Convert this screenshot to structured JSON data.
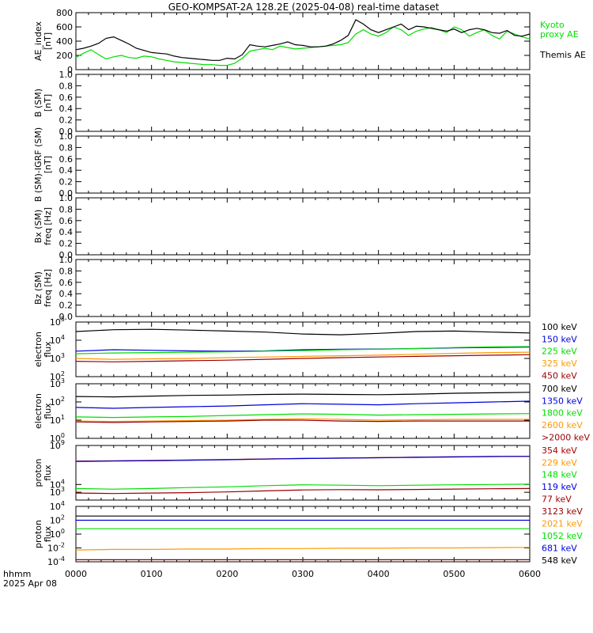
{
  "title": "GEO-KOMPSAT-2A 128.2E (2025-04-08) real-time dataset",
  "time_axis": {
    "ticks": [
      "0000",
      "0100",
      "0200",
      "0300",
      "0400",
      "0500",
      "0600"
    ],
    "label_line1": "hhmm",
    "label_line2": "2025 Apr 08"
  },
  "colors": {
    "black": "#000000",
    "green": "#00dd00",
    "blue": "#0000dd",
    "teal": "#008888",
    "orange": "#ff9900",
    "dark_red": "#990000",
    "crimson": "#aa0000"
  },
  "chart_data": [
    {
      "type": "line",
      "panel": "ae",
      "ylabel": [
        "AE_index",
        "[nT]"
      ],
      "yticks": [
        "0",
        "200",
        "400",
        "600",
        "800"
      ],
      "ylim": [
        0,
        800
      ],
      "x_hours": [
        0,
        0.1,
        0.2,
        0.3,
        0.4,
        0.5,
        0.6,
        0.7,
        0.8,
        0.9,
        1.0,
        1.1,
        1.2,
        1.3,
        1.4,
        1.5,
        1.6,
        1.7,
        1.8,
        1.9,
        2.0,
        2.1,
        2.2,
        2.3,
        2.4,
        2.5,
        2.6,
        2.7,
        2.8,
        2.9,
        3.0,
        3.1,
        3.2,
        3.3,
        3.4,
        3.5,
        3.6,
        3.7,
        3.8,
        3.9,
        4.0,
        4.1,
        4.2,
        4.3,
        4.4,
        4.5,
        4.6,
        4.7,
        4.8,
        4.9,
        5.0,
        5.1,
        5.2,
        5.3,
        5.4,
        5.5,
        5.6,
        5.7,
        5.8,
        5.9,
        6.0
      ],
      "series": [
        {
          "name": "Kyoto proxy AE",
          "color": "#00dd00",
          "values": [
            170,
            230,
            280,
            210,
            150,
            180,
            200,
            170,
            160,
            190,
            180,
            150,
            130,
            110,
            100,
            90,
            80,
            70,
            70,
            60,
            60,
            90,
            160,
            260,
            280,
            300,
            280,
            330,
            310,
            290,
            300,
            310,
            320,
            330,
            340,
            350,
            380,
            500,
            560,
            500,
            470,
            520,
            600,
            560,
            480,
            540,
            570,
            590,
            560,
            520,
            600,
            560,
            470,
            520,
            560,
            480,
            430,
            540,
            500,
            460,
            430
          ]
        },
        {
          "name": "Themis AE",
          "color": "#000000",
          "values": [
            280,
            300,
            330,
            370,
            440,
            460,
            410,
            360,
            300,
            270,
            240,
            230,
            220,
            190,
            170,
            160,
            150,
            140,
            130,
            130,
            160,
            150,
            210,
            350,
            330,
            320,
            340,
            360,
            390,
            350,
            340,
            320,
            320,
            330,
            360,
            410,
            480,
            700,
            640,
            560,
            520,
            560,
            600,
            640,
            560,
            610,
            600,
            580,
            560,
            540,
            570,
            520,
            560,
            580,
            560,
            520,
            510,
            550,
            480,
            470,
            500
          ]
        }
      ],
      "legend": [
        {
          "text": "Kyoto",
          "color": "#00dd00"
        },
        {
          "text": "proxy AE",
          "color": "#00dd00"
        },
        {
          "text": "Themis AE",
          "color": "#000000"
        }
      ]
    },
    {
      "type": "line",
      "panel": "b_sm",
      "ylabel": [
        "B (SM)",
        "[nT]"
      ],
      "yticks": [
        "0.0",
        "0.2",
        "0.4",
        "0.6",
        "0.8",
        "1.0"
      ],
      "ylim": [
        0,
        1
      ],
      "series": []
    },
    {
      "type": "line",
      "panel": "b_diff",
      "ylabel": [
        "B (SM)-IGRF (SM)",
        "[nT]"
      ],
      "yticks": [
        "0.0",
        "0.2",
        "0.4",
        "0.6",
        "0.8",
        "1.0"
      ],
      "ylim": [
        0,
        1
      ],
      "series": []
    },
    {
      "type": "line",
      "panel": "bx_freq",
      "ylabel": [
        "Bx (SM)",
        "freq [Hz]"
      ],
      "yticks": [
        "0.0",
        "0.2",
        "0.4",
        "0.6",
        "0.8",
        "1.0"
      ],
      "ylim": [
        0,
        1
      ],
      "series": []
    },
    {
      "type": "line",
      "panel": "bz_freq",
      "ylabel": [
        "Bz (SM)",
        "freq [Hz]"
      ],
      "yticks": [
        "0.0",
        "0.2",
        "0.4",
        "0.6",
        "0.8",
        "1.0"
      ],
      "ylim": [
        0,
        1
      ],
      "series": []
    },
    {
      "type": "line",
      "panel": "electron_low",
      "ylabel": [
        "electron",
        "flux"
      ],
      "yscale": "log",
      "yticks": [
        {
          "base": "10",
          "exp": "2"
        },
        {
          "base": "10",
          "exp": "3"
        },
        {
          "base": "10",
          "exp": "4"
        },
        {
          "base": "10",
          "exp": "5"
        }
      ],
      "ylim": [
        100,
        100000
      ],
      "x_hours": [
        0,
        0.5,
        1,
        1.5,
        2,
        2.5,
        3,
        3.5,
        4,
        4.5,
        5,
        5.5,
        6
      ],
      "series": [
        {
          "name": "100 keV",
          "color": "#000000",
          "values": [
            30000,
            38000,
            40000,
            36000,
            32000,
            28000,
            22000,
            20000,
            24000,
            30000,
            32000,
            28000,
            25000
          ]
        },
        {
          "name": "150 keV",
          "color": "#0000dd",
          "values": [
            2500,
            3000,
            2800,
            2600,
            2500,
            2600,
            3000,
            3200,
            3300,
            3500,
            3800,
            4000,
            4200
          ]
        },
        {
          "name": "225 keV",
          "color": "#00dd00",
          "values": [
            1800,
            2000,
            2100,
            2200,
            2300,
            2500,
            2700,
            3000,
            3200,
            3500,
            4000,
            4300,
            4500
          ]
        },
        {
          "name": "325 keV",
          "color": "#ff9900",
          "values": [
            1000,
            900,
            950,
            1000,
            1100,
            1200,
            1300,
            1400,
            1500,
            1700,
            1900,
            2100,
            2200
          ]
        },
        {
          "name": "450 keV",
          "color": "#990000",
          "values": [
            700,
            650,
            700,
            750,
            800,
            900,
            1000,
            1100,
            1200,
            1300,
            1400,
            1500,
            1600
          ]
        }
      ]
    },
    {
      "type": "line",
      "panel": "electron_high",
      "ylabel": [
        "electron",
        "flux"
      ],
      "yscale": "log",
      "yticks": [
        {
          "base": "10",
          "exp": "0"
        },
        {
          "base": "10",
          "exp": "1"
        },
        {
          "base": "10",
          "exp": "2"
        },
        {
          "base": "10",
          "exp": "3"
        }
      ],
      "ylim": [
        1,
        1000
      ],
      "x_hours": [
        0,
        0.5,
        1,
        1.5,
        2,
        2.5,
        3,
        3.5,
        4,
        4.5,
        5,
        5.5,
        6
      ],
      "series": [
        {
          "name": "700 keV",
          "color": "#000000",
          "values": [
            200,
            190,
            210,
            230,
            240,
            260,
            270,
            260,
            250,
            270,
            300,
            320,
            340
          ]
        },
        {
          "name": "1350 keV",
          "color": "#0000dd",
          "values": [
            50,
            45,
            50,
            55,
            60,
            70,
            80,
            75,
            70,
            80,
            90,
            100,
            110
          ]
        },
        {
          "name": "1800 keV",
          "color": "#00dd00",
          "values": [
            15,
            14,
            15,
            16,
            18,
            20,
            22,
            21,
            19,
            20,
            21,
            22,
            23
          ]
        },
        {
          "name": "2600 keV",
          "color": "#ff9900",
          "values": [
            9,
            8.5,
            9,
            9.5,
            10,
            11,
            12,
            11,
            10,
            10.5,
            11,
            11,
            11
          ]
        },
        {
          "name": ">2000 keV",
          "color": "#990000",
          "values": [
            8,
            7.5,
            8,
            8.5,
            9,
            10,
            10,
            9,
            8.5,
            9,
            9,
            9,
            9
          ]
        }
      ]
    },
    {
      "type": "line",
      "panel": "proton_low",
      "ylabel": [
        "proton",
        "flux"
      ],
      "yscale": "log",
      "yticks": [
        {
          "base": "10",
          "exp": "3"
        },
        {
          "base": "10",
          "exp": "4"
        },
        {
          "base": "10",
          "exp": "9"
        }
      ],
      "ylim": [
        100,
        1000000000
      ],
      "x_hours": [
        0,
        0.5,
        1,
        1.5,
        2,
        2.5,
        3,
        3.5,
        4,
        4.5,
        5,
        5.5,
        6
      ],
      "series": [
        {
          "name": "354 keV",
          "color": "#aa0000",
          "values": [
            10000000,
            11000000,
            12000000,
            14000000,
            16000000,
            19000000,
            22000000,
            25000000,
            28000000,
            32000000,
            36000000,
            40000000,
            42000000
          ]
        },
        {
          "name": "229 keV",
          "color": "#ff9900",
          "values": [
            9000000,
            10000000,
            11000000,
            13000000,
            15000000,
            18000000,
            21000000,
            24000000,
            27000000,
            30000000,
            34000000,
            38000000,
            40000000
          ]
        },
        {
          "name": "148 keV",
          "color": "#00dd00",
          "values": [
            3000,
            2500,
            3000,
            4000,
            5000,
            7000,
            9000,
            8000,
            7000,
            8000,
            9000,
            10000,
            11000
          ]
        },
        {
          "name": "119 keV",
          "color": "#0000dd",
          "values": [
            9000000,
            10000000,
            11000000,
            13000000,
            15000000,
            18000000,
            21000000,
            24000000,
            27000000,
            30000000,
            34000000,
            38000000,
            40000000
          ]
        },
        {
          "name": "77 keV",
          "color": "#990000",
          "values": [
            800,
            700,
            800,
            900,
            1100,
            1500,
            2000,
            2200,
            2100,
            2300,
            2600,
            2800,
            3000
          ]
        }
      ]
    },
    {
      "type": "line",
      "panel": "proton_high",
      "ylabel": [
        "proton",
        "flux"
      ],
      "yscale": "log",
      "yticks": [
        {
          "base": "10",
          "exp": "-4"
        },
        {
          "base": "10",
          "exp": "-2"
        },
        {
          "base": "10",
          "exp": "0"
        },
        {
          "base": "10",
          "exp": "2"
        },
        {
          "base": "10",
          "exp": "4"
        }
      ],
      "ylim": [
        0.0001,
        10000
      ],
      "x_hours": [
        0,
        0.5,
        1,
        1.5,
        2,
        2.5,
        3,
        3.5,
        4,
        4.5,
        5,
        5.5,
        6
      ],
      "series": [
        {
          "name": "3123 keV",
          "color": "#990000",
          "values": [
            0.0002,
            0.0002,
            0.0002,
            0.0002,
            0.0002,
            0.0002,
            0.0002,
            0.0002,
            0.0002,
            0.0002,
            0.0002,
            0.0002,
            0.0002
          ]
        },
        {
          "name": "2021 keV",
          "color": "#ff9900",
          "values": [
            0.005,
            0.006,
            0.006,
            0.007,
            0.007,
            0.008,
            0.008,
            0.009,
            0.009,
            0.01,
            0.01,
            0.011,
            0.012
          ]
        },
        {
          "name": "1052 keV",
          "color": "#00dd00",
          "values": [
            6,
            6,
            6,
            6,
            6,
            6,
            6,
            6,
            6,
            6,
            6,
            6,
            6
          ]
        },
        {
          "name": "681 keV",
          "color": "#0000dd",
          "values": [
            100,
            100,
            100,
            100,
            100,
            100,
            100,
            100,
            100,
            100,
            100,
            100,
            100
          ]
        },
        {
          "name": "548 keV",
          "color": "#000000",
          "values": [
            400,
            400,
            400,
            400,
            400,
            400,
            400,
            400,
            400,
            400,
            400,
            400,
            400
          ]
        }
      ]
    }
  ]
}
